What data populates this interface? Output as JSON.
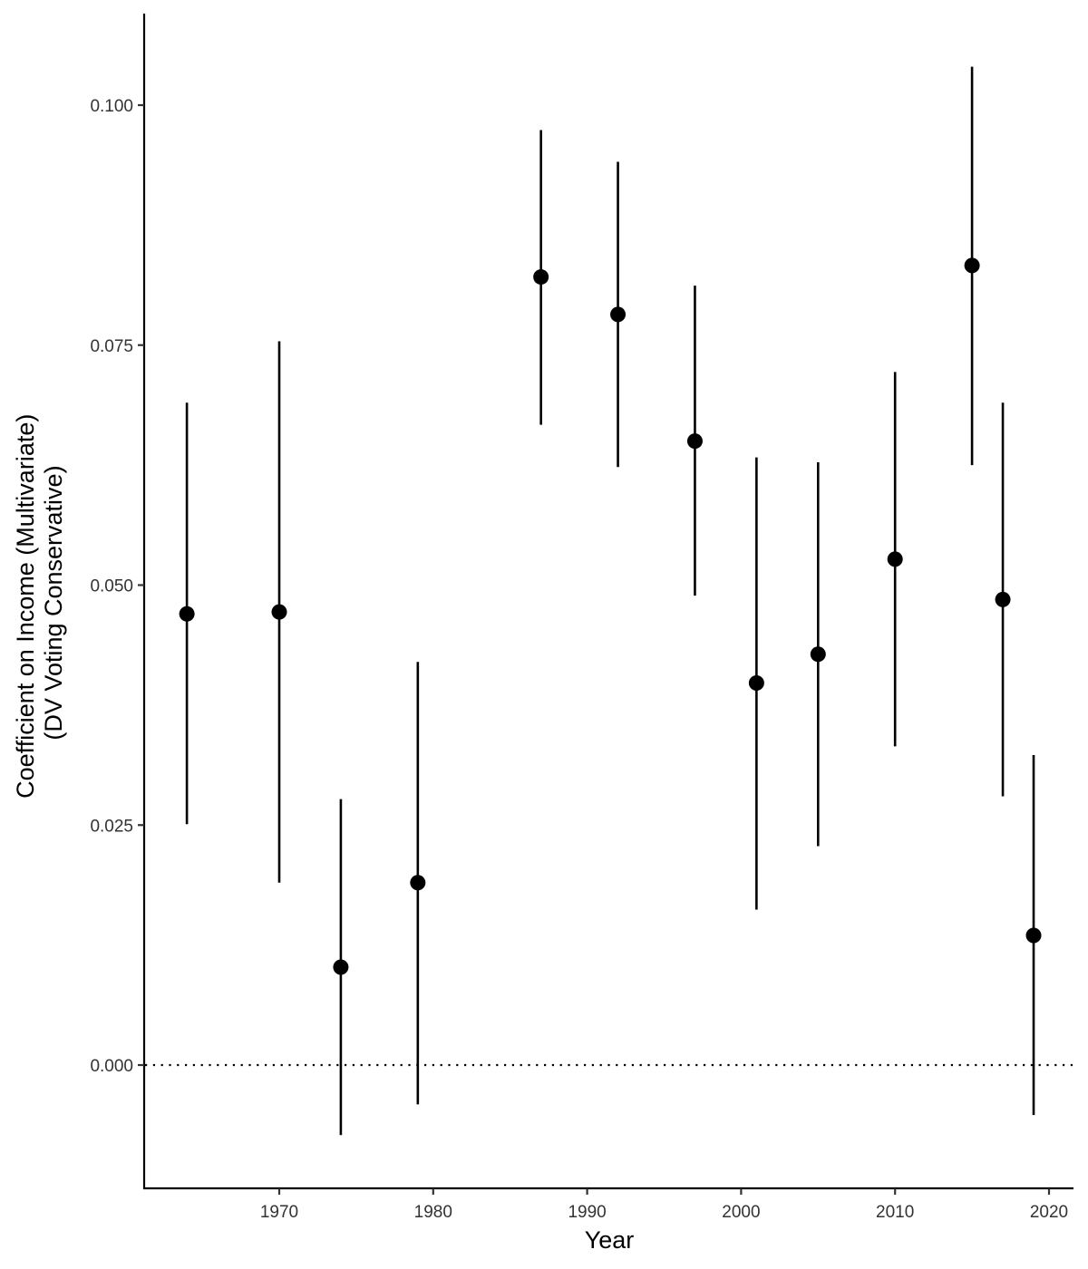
{
  "chart_data": {
    "type": "scatter",
    "subtype": "point-range",
    "xlabel": "Year",
    "ylabel_lines": [
      "Coefficient on Income (Multivariate)",
      "(DV Voting Conservative)"
    ],
    "xlim": [
      1961.3,
      1921.3
    ],
    "ylim": [
      -0.0128,
      0.1038
    ],
    "x_ticks": [
      1970,
      1980,
      1990,
      2000,
      2010,
      2020
    ],
    "y_ticks": [
      0.0,
      0.025,
      0.05,
      0.075,
      0.1
    ],
    "y_tick_labels": [
      "0.000",
      "0.025",
      "0.050",
      "0.075",
      "0.100"
    ],
    "reference_line": {
      "y": 0.0,
      "style": "dotted"
    },
    "grid": false,
    "legend": "none",
    "points": [
      {
        "x": 1964,
        "y": 0.047,
        "low": 0.0251,
        "high": 0.069
      },
      {
        "x": 1970,
        "y": 0.0472,
        "low": 0.019,
        "high": 0.0754
      },
      {
        "x": 1974,
        "y": 0.0102,
        "low": -0.0073,
        "high": 0.0277
      },
      {
        "x": 1979,
        "y": 0.019,
        "low": -0.0041,
        "high": 0.042
      },
      {
        "x": 1987,
        "y": 0.0821,
        "low": 0.0667,
        "high": 0.0974
      },
      {
        "x": 1992,
        "y": 0.0782,
        "low": 0.0623,
        "high": 0.0941
      },
      {
        "x": 1997,
        "y": 0.065,
        "low": 0.0489,
        "high": 0.0812
      },
      {
        "x": 2001,
        "y": 0.0398,
        "low": 0.0162,
        "high": 0.0633
      },
      {
        "x": 2005,
        "y": 0.0428,
        "low": 0.0228,
        "high": 0.0628
      },
      {
        "x": 2010,
        "y": 0.0527,
        "low": 0.0332,
        "high": 0.0722
      },
      {
        "x": 2015,
        "y": 0.0833,
        "low": 0.0625,
        "high": 0.104
      },
      {
        "x": 2017,
        "y": 0.0485,
        "low": 0.028,
        "high": 0.069
      },
      {
        "x": 2019,
        "y": 0.0135,
        "low": -0.0052,
        "high": 0.0323
      }
    ]
  }
}
